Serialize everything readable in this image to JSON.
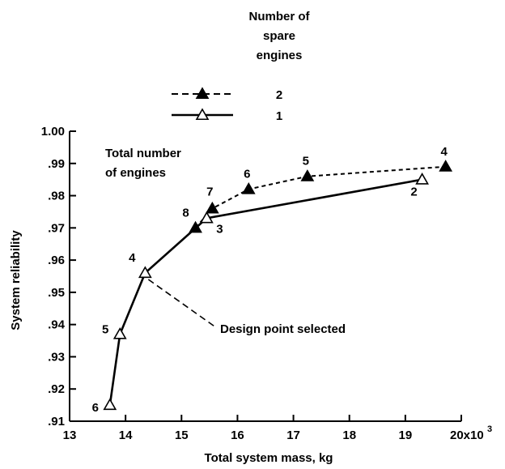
{
  "chart_data": {
    "type": "line",
    "legend": {
      "title_lines": [
        "Number of",
        "spare",
        "engines"
      ],
      "placement": "top-center"
    },
    "annotation": {
      "text_lines": [
        "Total number",
        "of engines"
      ]
    },
    "callout": "Design point selected",
    "xlabel": "Total system mass, kg",
    "ylabel": "System reliability",
    "xlim": [
      13,
      20
    ],
    "ylim": [
      0.91,
      1.0
    ],
    "x_ticks": [
      13,
      14,
      15,
      16,
      17,
      18,
      19,
      20
    ],
    "x_tick_labels": [
      "13",
      "14",
      "15",
      "16",
      "17",
      "18",
      "19",
      "20x10"
    ],
    "x_exponent": "3",
    "y_ticks": [
      0.91,
      0.92,
      0.93,
      0.94,
      0.95,
      0.96,
      0.97,
      0.98,
      0.99,
      1.0
    ],
    "y_tick_labels": [
      ".91",
      ".92",
      ".93",
      ".94",
      ".95",
      ".96",
      ".97",
      ".98",
      ".99",
      "1.00"
    ],
    "grid": false,
    "series": [
      {
        "name": "2",
        "line_style": "dashed",
        "marker": "filled-triangle",
        "points": [
          {
            "x": 15.25,
            "y": 0.97,
            "label": "8"
          },
          {
            "x": 15.55,
            "y": 0.976,
            "label": "7"
          },
          {
            "x": 16.2,
            "y": 0.982,
            "label": "6"
          },
          {
            "x": 17.25,
            "y": 0.986,
            "label": "5"
          },
          {
            "x": 19.72,
            "y": 0.989,
            "label": "4"
          }
        ]
      },
      {
        "name": "1",
        "line_style": "solid",
        "marker": "open-triangle",
        "points": [
          {
            "x": 13.72,
            "y": 0.915,
            "label": "6"
          },
          {
            "x": 13.9,
            "y": 0.937,
            "label": "5"
          },
          {
            "x": 14.35,
            "y": 0.956,
            "label": "4"
          },
          {
            "x": 15.45,
            "y": 0.973,
            "label": "3"
          },
          {
            "x": 19.3,
            "y": 0.985,
            "label": "2"
          }
        ]
      }
    ]
  }
}
